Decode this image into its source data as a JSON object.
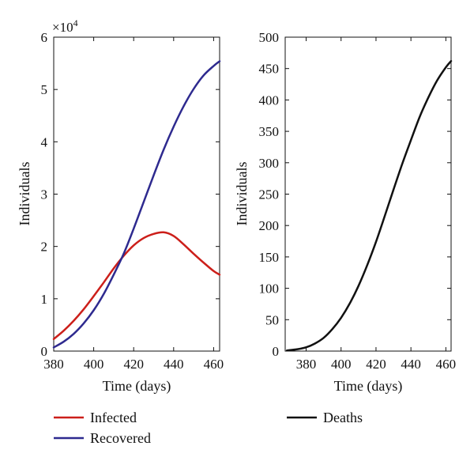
{
  "chart_data": [
    {
      "type": "line",
      "title": "",
      "xlabel": "Time (days)",
      "ylabel": "Individuals",
      "y_multiplier_label": "×10",
      "y_multiplier_exponent": "4",
      "xlim": [
        380,
        463
      ],
      "ylim": [
        0,
        6
      ],
      "xticks": [
        380,
        400,
        420,
        440,
        460
      ],
      "yticks": [
        0,
        1,
        2,
        3,
        4,
        5,
        6
      ],
      "series": [
        {
          "name": "Infected",
          "color": "#cc1f1a",
          "x": [
            380,
            385,
            390,
            395,
            400,
            405,
            410,
            415,
            420,
            425,
            430,
            435,
            440,
            445,
            450,
            455,
            460,
            463
          ],
          "y": [
            0.23,
            0.39,
            0.58,
            0.8,
            1.05,
            1.31,
            1.58,
            1.82,
            2.02,
            2.16,
            2.24,
            2.27,
            2.2,
            2.04,
            1.86,
            1.69,
            1.53,
            1.46
          ]
        },
        {
          "name": "Recovered",
          "color": "#2e2a8f",
          "x": [
            380,
            385,
            390,
            395,
            400,
            405,
            410,
            415,
            420,
            425,
            430,
            435,
            440,
            445,
            450,
            455,
            460,
            463
          ],
          "y": [
            0.07,
            0.18,
            0.33,
            0.53,
            0.78,
            1.09,
            1.46,
            1.86,
            2.34,
            2.85,
            3.36,
            3.85,
            4.29,
            4.68,
            5.01,
            5.27,
            5.45,
            5.54
          ]
        }
      ]
    },
    {
      "type": "line",
      "title": "",
      "xlabel": "Time (days)",
      "ylabel": "Individuals",
      "xlim": [
        368,
        463
      ],
      "ylim": [
        0,
        500
      ],
      "xticks": [
        380,
        400,
        420,
        440,
        460
      ],
      "yticks": [
        0,
        50,
        100,
        150,
        200,
        250,
        300,
        350,
        400,
        450,
        500
      ],
      "series": [
        {
          "name": "Deaths",
          "color": "#111111",
          "x": [
            369,
            375,
            380,
            385,
            390,
            395,
            400,
            405,
            410,
            415,
            420,
            425,
            430,
            435,
            440,
            445,
            450,
            455,
            460,
            463
          ],
          "y": [
            1,
            3,
            6,
            12,
            21,
            35,
            53,
            76,
            104,
            137,
            174,
            215,
            257,
            298,
            336,
            373,
            404,
            431,
            452,
            462
          ]
        }
      ]
    }
  ],
  "legend": {
    "items": [
      {
        "label": "Infected",
        "color": "#cc1f1a"
      },
      {
        "label": "Recovered",
        "color": "#2e2a8f"
      },
      {
        "label": "Deaths",
        "color": "#111111"
      }
    ]
  }
}
